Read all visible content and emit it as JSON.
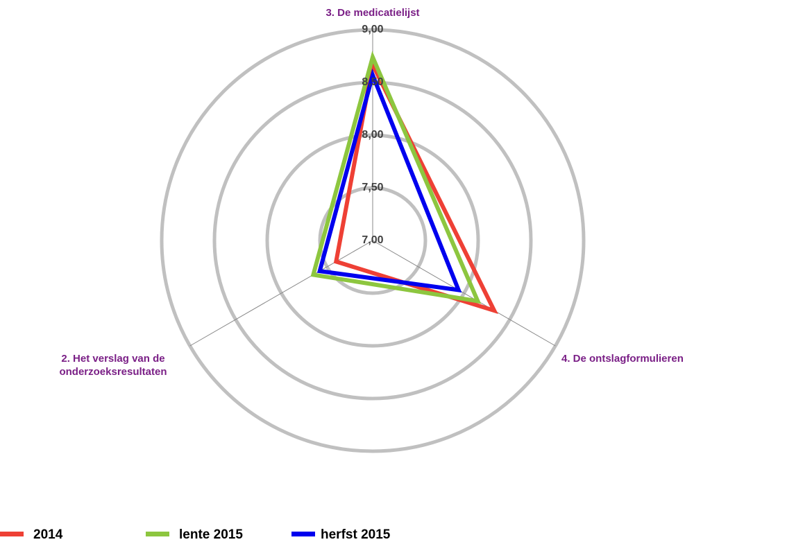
{
  "chart_data": {
    "type": "radar",
    "categories": [
      "2. Het verslag van de onderzoeksresultaten",
      "3. De medicatielijst",
      "4. De ontslagformulieren"
    ],
    "rlim": [
      7,
      9
    ],
    "rticks": [
      {
        "value": 7,
        "label": "7,00"
      },
      {
        "value": 7.5,
        "label": "7,50"
      },
      {
        "value": 8,
        "label": "8,00"
      },
      {
        "value": 8.5,
        "label": "8,50"
      },
      {
        "value": 9,
        "label": "9,00"
      }
    ],
    "series": [
      {
        "name": "2014",
        "color": "#ee4035",
        "values": [
          7.4,
          8.67,
          8.33
        ]
      },
      {
        "name": "lente 2015",
        "color": "#8dc63f",
        "values": [
          7.65,
          8.74,
          8.15
        ]
      },
      {
        "name": "herfst 2015",
        "color": "#0000ee",
        "values": [
          7.58,
          8.57,
          7.94
        ]
      }
    ],
    "legend": "bottom-left"
  }
}
